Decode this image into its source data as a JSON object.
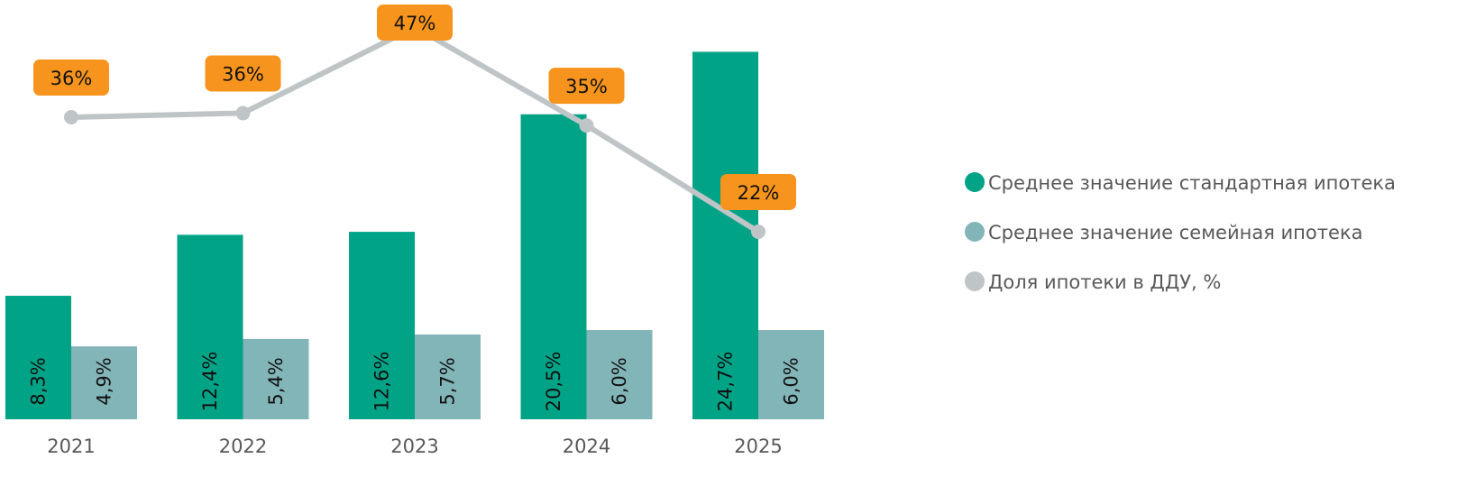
{
  "chart_data": {
    "type": "bar",
    "categories": [
      "2021",
      "2022",
      "2023",
      "2024",
      "2025"
    ],
    "series": [
      {
        "name": "Среднее значение стандартная ипотека",
        "kind": "bar",
        "color": "#00A386",
        "values": [
          8.3,
          12.4,
          12.6,
          20.5,
          24.7
        ],
        "labels": [
          "8,3%",
          "12,4%",
          "12,6%",
          "20,5%",
          "24,7%"
        ]
      },
      {
        "name": "Среднее значение семейная ипотека",
        "kind": "bar",
        "color": "#82B5B8",
        "values": [
          4.9,
          5.4,
          5.7,
          6.0,
          6.0
        ],
        "labels": [
          "4,9%",
          "5,4%",
          "5,7%",
          "6,0%",
          "6,0%"
        ]
      },
      {
        "name": "Доля ипотеки в ДДУ, %",
        "kind": "line",
        "color": "#BFC4C7",
        "values": [
          36,
          36.5,
          47,
          35,
          22
        ],
        "labels": [
          "36%",
          "36%",
          "47%",
          "35%",
          "22%"
        ]
      }
    ],
    "label_box_color": "#F7941D",
    "legend_position": "right",
    "grid": false,
    "title": "",
    "xlabel": "",
    "ylabel": ""
  }
}
